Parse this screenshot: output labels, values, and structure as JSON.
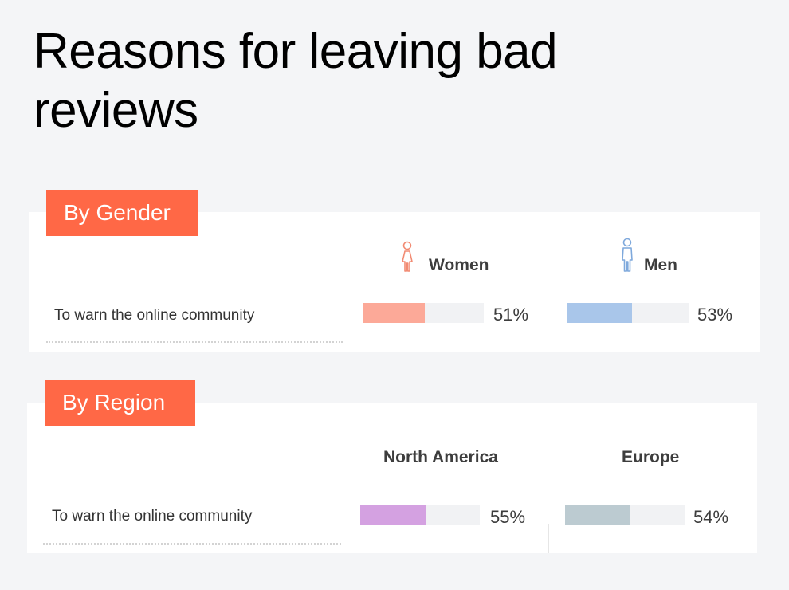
{
  "title": "Reasons for leaving bad reviews",
  "colors": {
    "tab": "#ff6846",
    "women": "#fca998",
    "men": "#a9c6ea",
    "north_america": "#d4a1e1",
    "europe": "#bccbd1",
    "track": "#f1f2f4"
  },
  "chart_data": [
    {
      "type": "bar",
      "title": "By Gender",
      "categories": [
        "To warn the online community"
      ],
      "series": [
        {
          "name": "Women",
          "values": [
            51
          ],
          "icon": "female-person-icon"
        },
        {
          "name": "Men",
          "values": [
            53
          ],
          "icon": "male-person-icon"
        }
      ],
      "ylim": [
        0,
        100
      ],
      "unit": "%"
    },
    {
      "type": "bar",
      "title": "By Region",
      "categories": [
        "To warn the online community"
      ],
      "series": [
        {
          "name": "North America",
          "values": [
            55
          ]
        },
        {
          "name": "Europe",
          "values": [
            54
          ]
        }
      ],
      "ylim": [
        0,
        100
      ],
      "unit": "%"
    }
  ],
  "gender": {
    "tab": "By Gender",
    "row_label": "To warn the online community",
    "women": {
      "label": "Women",
      "pct_text": "51%"
    },
    "men": {
      "label": "Men",
      "pct_text": "53%"
    }
  },
  "region": {
    "tab": "By Region",
    "row_label": "To warn the online community",
    "north_america": {
      "label": "North America",
      "pct_text": "55%"
    },
    "europe": {
      "label": "Europe",
      "pct_text": "54%"
    }
  }
}
